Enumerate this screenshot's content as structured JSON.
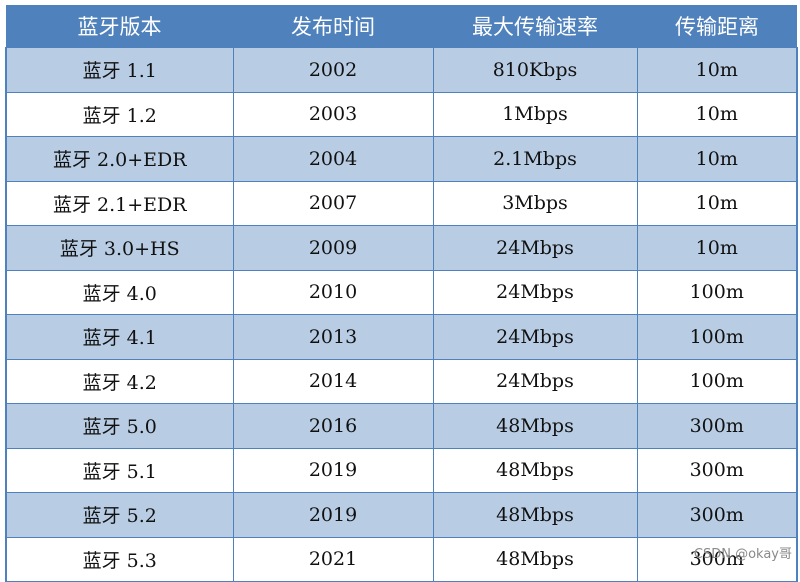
{
  "table": {
    "headers": [
      "蓝牙版本",
      "发布时间",
      "最大传输速率",
      "传输距离"
    ],
    "rows": [
      [
        "蓝牙 1.1",
        "2002",
        "810Kbps",
        "10m"
      ],
      [
        "蓝牙 1.2",
        "2003",
        "1Mbps",
        "10m"
      ],
      [
        "蓝牙 2.0+EDR",
        "2004",
        "2.1Mbps",
        "10m"
      ],
      [
        "蓝牙 2.1+EDR",
        "2007",
        "3Mbps",
        "10m"
      ],
      [
        "蓝牙 3.0+HS",
        "2009",
        "24Mbps",
        "10m"
      ],
      [
        "蓝牙 4.0",
        "2010",
        "24Mbps",
        "100m"
      ],
      [
        "蓝牙 4.1",
        "2013",
        "24Mbps",
        "100m"
      ],
      [
        "蓝牙 4.2",
        "2014",
        "24Mbps",
        "100m"
      ],
      [
        "蓝牙 5.0",
        "2016",
        "48Mbps",
        "300m"
      ],
      [
        "蓝牙 5.1",
        "2019",
        "48Mbps",
        "300m"
      ],
      [
        "蓝牙 5.2",
        "2019",
        "48Mbps",
        "300m"
      ],
      [
        "蓝牙 5.3",
        "2021",
        "48Mbps",
        "300m"
      ]
    ]
  },
  "watermark": "CSDN @okay哥",
  "colors": {
    "header_bg": "#4f81bd",
    "band": "#b8cce4",
    "border": "#4f81bd"
  }
}
